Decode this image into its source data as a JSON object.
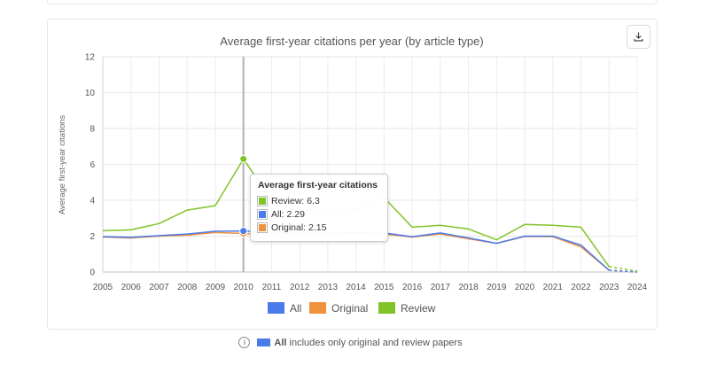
{
  "chart_data": {
    "type": "line",
    "title": "Average first-year citations per year (by article type)",
    "xlabel": "",
    "ylabel": "Average first-year citations",
    "x": [
      "2005",
      "2006",
      "2007",
      "2008",
      "2009",
      "2010",
      "2011",
      "2012",
      "2013",
      "2014",
      "2015",
      "2016",
      "2017",
      "2018",
      "2019",
      "2020",
      "2021",
      "2022",
      "2023",
      "2024"
    ],
    "ylim": [
      0,
      12
    ],
    "yticks": [
      0,
      2,
      4,
      6,
      8,
      10,
      12
    ],
    "grid": true,
    "legend_position": "bottom",
    "series": [
      {
        "name": "All",
        "color": "#4a7bea",
        "values": [
          1.97,
          1.93,
          2.03,
          2.12,
          2.27,
          2.29,
          2.2,
          2.15,
          2.18,
          2.2,
          2.18,
          1.97,
          2.18,
          1.9,
          1.6,
          2.0,
          2.0,
          1.5,
          0.1,
          0.0
        ]
      },
      {
        "name": "Original",
        "color": "#f0913e",
        "values": [
          1.95,
          1.9,
          2.0,
          2.05,
          2.2,
          2.15,
          2.1,
          2.1,
          2.12,
          2.15,
          2.12,
          1.95,
          2.12,
          1.85,
          1.6,
          1.98,
          1.97,
          1.4,
          0.1,
          0.0
        ]
      },
      {
        "name": "Review",
        "color": "#80c427",
        "values": [
          2.3,
          2.35,
          2.7,
          3.45,
          3.7,
          6.3,
          4.0,
          3.6,
          3.3,
          3.45,
          4.15,
          2.5,
          2.6,
          2.4,
          1.8,
          2.65,
          2.6,
          2.5,
          0.3,
          0.05
        ]
      }
    ],
    "tooltip": {
      "title": "Average first-year citations",
      "year": "2010",
      "rows": [
        {
          "label": "Review: 6.3",
          "color": "#80c427"
        },
        {
          "label": "All: 2.29",
          "color": "#4a7bea"
        },
        {
          "label": "Original: 2.15",
          "color": "#f0913e"
        }
      ]
    }
  },
  "footnote": {
    "bold": "All",
    "text": " includes only original and review papers",
    "swatch_color": "#4a7bea"
  },
  "download_icon": "download-icon"
}
